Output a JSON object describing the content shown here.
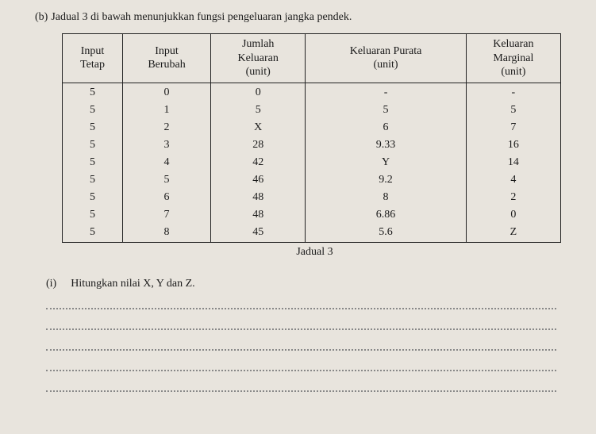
{
  "question": {
    "part": "(b)",
    "text": "Jadual 3 di bawah menunjukkan fungsi pengeluaran jangka pendek."
  },
  "table": {
    "headers": [
      "Input\nTetap",
      "Input\nBerubah",
      "Jumlah\nKeluaran\n(unit)",
      "Keluaran Purata\n(unit)",
      "Keluaran\nMarginal\n(unit)"
    ],
    "rows": [
      [
        "5",
        "0",
        "0",
        "-",
        "-"
      ],
      [
        "5",
        "1",
        "5",
        "5",
        "5"
      ],
      [
        "5",
        "2",
        "X",
        "6",
        "7"
      ],
      [
        "5",
        "3",
        "28",
        "9.33",
        "16"
      ],
      [
        "5",
        "4",
        "42",
        "Y",
        "14"
      ],
      [
        "5",
        "5",
        "46",
        "9.2",
        "4"
      ],
      [
        "5",
        "6",
        "48",
        "8",
        "2"
      ],
      [
        "5",
        "7",
        "48",
        "6.86",
        "0"
      ],
      [
        "5",
        "8",
        "45",
        "5.6",
        "Z"
      ]
    ],
    "caption": "Jadual 3"
  },
  "subquestion": {
    "num": "(i)",
    "text": "Hitungkan nilai X, Y dan Z."
  }
}
